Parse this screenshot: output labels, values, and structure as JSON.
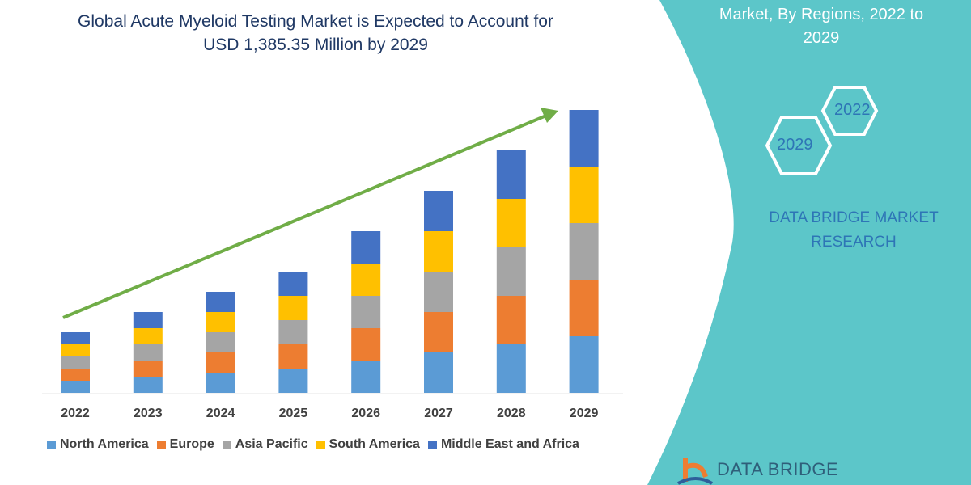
{
  "title_line1": "Global Acute Myeloid Testing Market is Expected to Account for",
  "title_line2": "USD 1,385.35 Million by 2029",
  "side_panel": {
    "title_line2": "Market, By Regions, 2022 to",
    "title_line3": "2029",
    "hex_a": "2022",
    "hex_b": "2029",
    "brand_line1": "DATA BRIDGE MARKET",
    "brand_line2": "RESEARCH",
    "logo_text": "DATA BRIDGE",
    "color": "#5cc6c9"
  },
  "chart_data": {
    "type": "bar",
    "stacked": true,
    "title": "Global Acute Myeloid Testing Market is Expected to Account for USD 1,385.35 Million by 2029",
    "categories": [
      "2022",
      "2023",
      "2024",
      "2025",
      "2026",
      "2027",
      "2028",
      "2029"
    ],
    "series": [
      {
        "name": "North America",
        "color": "#5b9bd5",
        "values": [
          15,
          20,
          25,
          30,
          40,
          50,
          60,
          70
        ]
      },
      {
        "name": "Europe",
        "color": "#ed7d31",
        "values": [
          15,
          20,
          25,
          30,
          40,
          50,
          60,
          70
        ]
      },
      {
        "name": "Asia Pacific",
        "color": "#a5a5a5",
        "values": [
          15,
          20,
          25,
          30,
          40,
          50,
          60,
          70
        ]
      },
      {
        "name": "South America",
        "color": "#ffc000",
        "values": [
          15,
          20,
          25,
          30,
          40,
          50,
          60,
          70
        ]
      },
      {
        "name": "Middle East and Africa",
        "color": "#4472c4",
        "values": [
          15,
          20,
          25,
          30,
          40,
          50,
          60,
          70
        ]
      }
    ],
    "y_axis_shown": false,
    "grid": false,
    "legend_position": "bottom",
    "trend_arrow_color": "#70ad47"
  }
}
